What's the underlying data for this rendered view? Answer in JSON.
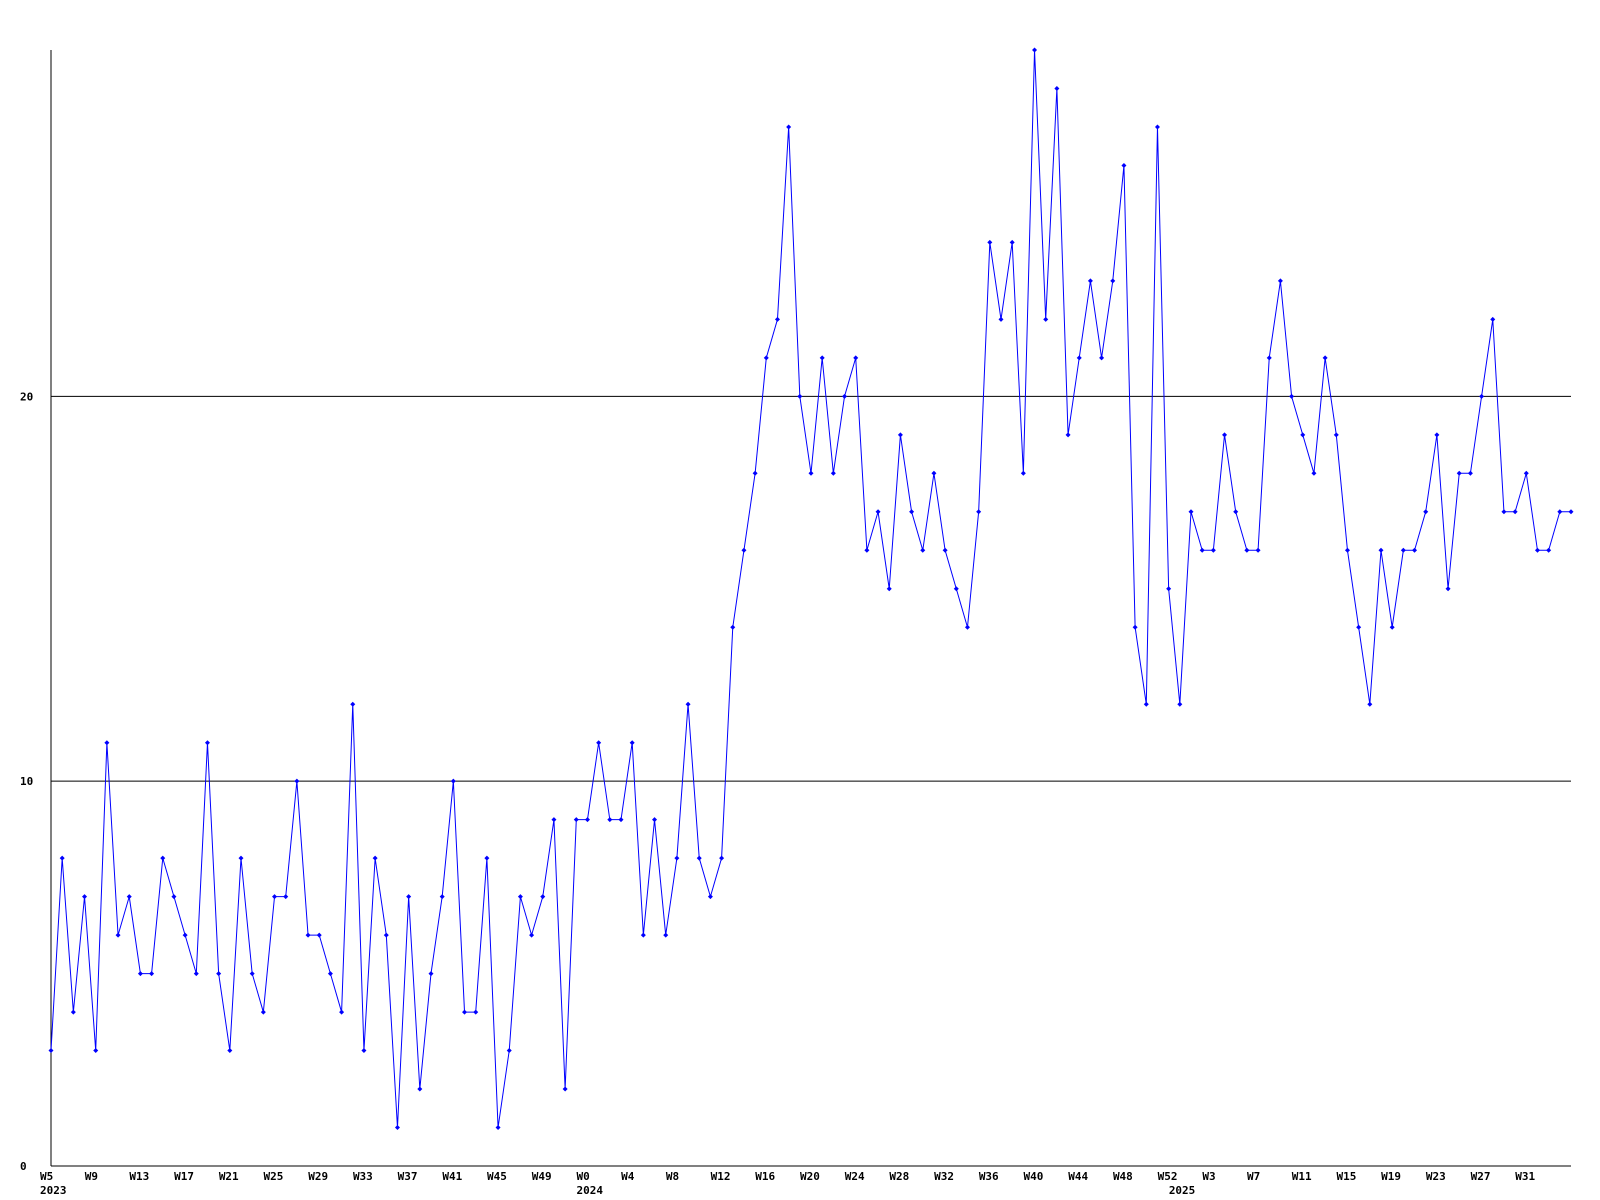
{
  "chart_data": {
    "type": "line",
    "categories": [
      "W5",
      null,
      null,
      null,
      "W9",
      null,
      null,
      null,
      "W13",
      null,
      null,
      null,
      "W17",
      null,
      null,
      null,
      "W21",
      null,
      null,
      null,
      "W25",
      null,
      null,
      null,
      "W29",
      null,
      null,
      null,
      "W33",
      null,
      null,
      null,
      "W37",
      null,
      null,
      null,
      "W41",
      null,
      null,
      null,
      "W45",
      null,
      null,
      null,
      "W49",
      null,
      null,
      null,
      "W0",
      null,
      null,
      null,
      "W4",
      null,
      null,
      null,
      "W8",
      null,
      null,
      null,
      "W12",
      null,
      null,
      null,
      "W16",
      null,
      null,
      null,
      "W20",
      null,
      null,
      null,
      "W24",
      null,
      null,
      null,
      "W28",
      null,
      null,
      null,
      "W32",
      null,
      null,
      null,
      "W36",
      null,
      null,
      null,
      "W40",
      null,
      null,
      null,
      "W44",
      null,
      null,
      null,
      "W48",
      null,
      null,
      null,
      "W52",
      null,
      null,
      null,
      "W3",
      null,
      null,
      null,
      "W7",
      null,
      null,
      null,
      "W11",
      null,
      null,
      null,
      "W15",
      null,
      null,
      null,
      "W19",
      null,
      null,
      null,
      "W23",
      null,
      null,
      null,
      "W27",
      null,
      null,
      null,
      "W31",
      null,
      null,
      null,
      null
    ],
    "year_labels": [
      "2023",
      null,
      null,
      null,
      null,
      null,
      null,
      null,
      null,
      null,
      null,
      null,
      null,
      null,
      null,
      null,
      null,
      null,
      null,
      null,
      null,
      null,
      null,
      null,
      null,
      null,
      null,
      null,
      null,
      null,
      null,
      null,
      null,
      null,
      null,
      null,
      null,
      null,
      null,
      null,
      null,
      null,
      null,
      null,
      null,
      null,
      null,
      null,
      "2024",
      null,
      null,
      null,
      null,
      null,
      null,
      null,
      null,
      null,
      null,
      null,
      null,
      null,
      null,
      null,
      null,
      null,
      null,
      null,
      null,
      null,
      null,
      null,
      null,
      null,
      null,
      null,
      null,
      null,
      null,
      null,
      null,
      null,
      null,
      null,
      null,
      null,
      null,
      null,
      null,
      null,
      null,
      null,
      null,
      null,
      null,
      null,
      null,
      null,
      null,
      null,
      null,
      "2025",
      null,
      null,
      null,
      null,
      null,
      null,
      null,
      null,
      null,
      null,
      null,
      null,
      null,
      null,
      null,
      null,
      null,
      null,
      null,
      null,
      null,
      null,
      null,
      null,
      null,
      null,
      null,
      null,
      null,
      null,
      null,
      null,
      null,
      null,
      null
    ],
    "values": [
      3,
      8,
      4,
      7,
      3,
      11,
      6,
      7,
      5,
      5,
      8,
      7,
      6,
      5,
      11,
      5,
      3,
      8,
      5,
      4,
      7,
      7,
      10,
      6,
      6,
      5,
      4,
      12,
      3,
      8,
      6,
      1,
      7,
      2,
      5,
      7,
      10,
      4,
      4,
      8,
      1,
      3,
      7,
      6,
      7,
      9,
      2,
      9,
      9,
      11,
      9,
      9,
      11,
      6,
      9,
      6,
      8,
      12,
      8,
      7,
      8,
      14,
      16,
      18,
      21,
      22,
      27,
      20,
      18,
      21,
      18,
      20,
      21,
      16,
      17,
      15,
      19,
      17,
      16,
      18,
      16,
      15,
      14,
      17,
      24,
      22,
      24,
      18,
      29,
      22,
      28,
      19,
      21,
      23,
      21,
      23,
      26,
      14,
      12,
      27,
      15,
      12,
      17,
      16,
      16,
      19,
      17,
      16,
      16,
      21,
      23,
      20,
      19,
      18,
      21,
      19,
      16,
      14,
      12,
      16,
      14,
      16,
      16,
      17,
      19,
      15,
      18,
      18,
      20,
      22,
      17,
      17,
      18,
      16,
      16,
      17,
      17
    ],
    "color": "#0000ff",
    "ylim": [
      0,
      29
    ],
    "yticks": [
      0,
      10,
      20
    ],
    "grid": true
  }
}
